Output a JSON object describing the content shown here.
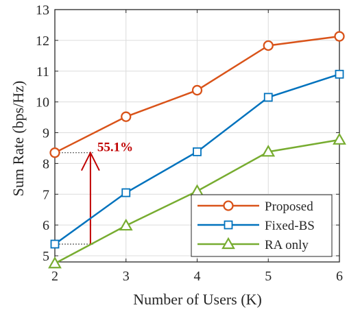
{
  "chart_data": {
    "type": "line",
    "title": "",
    "xlabel": "Number of Users (K)",
    "ylabel": "Sum Rate (bps/Hz)",
    "x": [
      2,
      3,
      4,
      5,
      6
    ],
    "xlim": [
      2,
      6
    ],
    "ylim": [
      4.8,
      13
    ],
    "xticks": [
      "2",
      "3",
      "4",
      "5",
      "6"
    ],
    "yticks": [
      "5",
      "6",
      "7",
      "8",
      "9",
      "10",
      "11",
      "12",
      "13"
    ],
    "grid": true,
    "legend_position": "bottom-right",
    "series": [
      {
        "name": "Proposed",
        "values": [
          8.35,
          9.52,
          10.38,
          11.83,
          12.13
        ],
        "color": "#D95319",
        "marker": "circle"
      },
      {
        "name": "Fixed-BS",
        "values": [
          5.38,
          7.05,
          8.38,
          10.15,
          10.9
        ],
        "color": "#0072BD",
        "marker": "square"
      },
      {
        "name": "RA only",
        "values": [
          4.75,
          5.98,
          7.1,
          8.38,
          8.77
        ],
        "color": "#77AC30",
        "marker": "triangle"
      }
    ],
    "annotations": [
      {
        "text": "55.1%",
        "x": 2.5,
        "y_from": 5.38,
        "y_to": 8.35,
        "color": "#C00000"
      }
    ]
  }
}
